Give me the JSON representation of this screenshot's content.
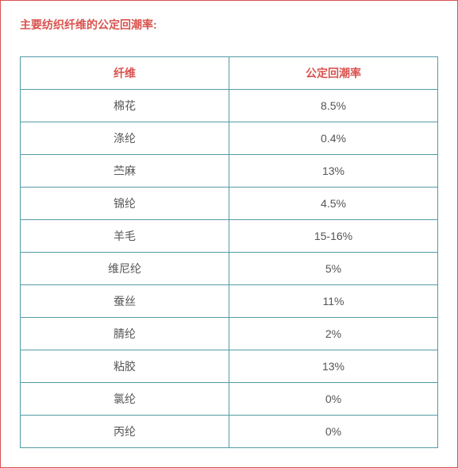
{
  "title": "主要纺织纤维的公定回潮率:",
  "table": {
    "headers": [
      "纤维",
      "公定回潮率"
    ],
    "rows": [
      [
        "棉花",
        "8.5%"
      ],
      [
        "涤纶",
        "0.4%"
      ],
      [
        "苎麻",
        "13%"
      ],
      [
        "锦纶",
        "4.5%"
      ],
      [
        "羊毛",
        "15-16%"
      ],
      [
        "维尼纶",
        "5%"
      ],
      [
        "蚕丝",
        "11%"
      ],
      [
        "腈纶",
        "2%"
      ],
      [
        "粘胶",
        "13%"
      ],
      [
        "氯纶",
        "0%"
      ],
      [
        "丙纶",
        "0%"
      ]
    ]
  },
  "styling": {
    "border_color": "#d9534f",
    "title_color": "#d9534f",
    "header_text_color": "#d9534f",
    "cell_text_color": "#555555",
    "table_border_color": "#549ba5",
    "background_color": "#ffffff",
    "title_fontsize": 14,
    "cell_fontsize": 14
  }
}
